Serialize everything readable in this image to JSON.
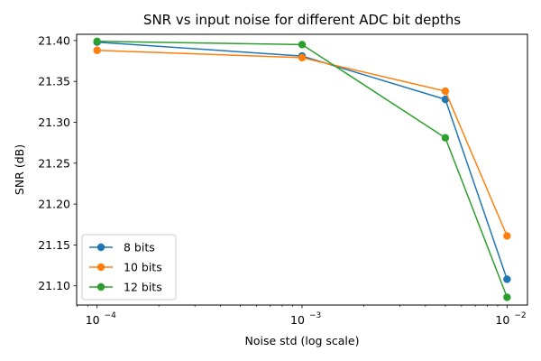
{
  "chart_data": {
    "type": "line",
    "title": "SNR vs input noise for different ADC bit depths",
    "xlabel": "Noise std (log scale)",
    "ylabel": "SNR (dB)",
    "x_scale": "log",
    "x": [
      0.0001,
      0.001,
      0.005,
      0.01
    ],
    "xlim": [
      7.95e-05,
      0.01258
    ],
    "ylim": [
      21.0765,
      21.4076
    ],
    "x_ticks": [
      {
        "value": 0.0001,
        "base": "10",
        "exp": "−4"
      },
      {
        "value": 0.001,
        "base": "10",
        "exp": "−3"
      },
      {
        "value": 0.01,
        "base": "10",
        "exp": "−2"
      }
    ],
    "y_ticks": [
      {
        "value": 21.1,
        "label": "21.10"
      },
      {
        "value": 21.15,
        "label": "21.15"
      },
      {
        "value": 21.2,
        "label": "21.20"
      },
      {
        "value": 21.25,
        "label": "21.25"
      },
      {
        "value": 21.3,
        "label": "21.30"
      },
      {
        "value": 21.35,
        "label": "21.35"
      },
      {
        "value": 21.4,
        "label": "21.40"
      }
    ],
    "grid": false,
    "legend": "lower-left",
    "series": [
      {
        "name": "8 bits",
        "color": "#1f77b4",
        "values": [
          21.398,
          21.381,
          21.328,
          21.108
        ]
      },
      {
        "name": "10 bits",
        "color": "#ff7f0e",
        "values": [
          21.388,
          21.379,
          21.338,
          21.161
        ]
      },
      {
        "name": "12 bits",
        "color": "#2ca02c",
        "values": [
          21.399,
          21.395,
          21.281,
          21.086
        ]
      }
    ]
  }
}
